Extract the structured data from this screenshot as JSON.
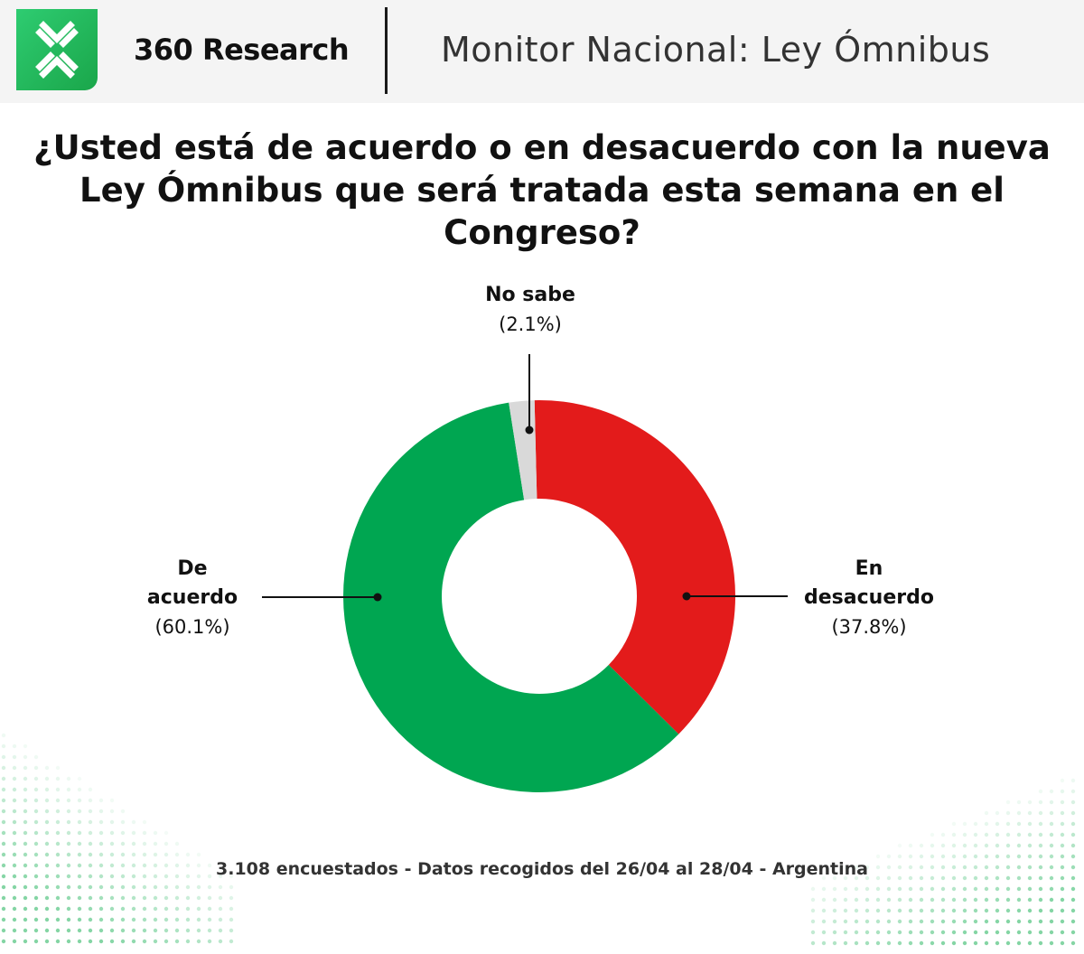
{
  "header": {
    "brand": "360 Research",
    "subtitle": "Monitor Nacional: Ley Ómnibus",
    "logo_icon": "x-arrows-logo-icon",
    "logo_color": "#22b95a"
  },
  "question": [
    "¿Usted está de acuerdo o en desacuerdo con la nueva",
    "Ley Ómnibus que será tratada esta semana en el",
    "Congreso?"
  ],
  "footer": "3.108 encuestados - Datos recogidos del 26/04 al 28/04 - Argentina",
  "chart_data": {
    "type": "pie",
    "donut": true,
    "slices": [
      {
        "label_lines": [
          "En",
          "desacuerdo"
        ],
        "value": 37.8,
        "value_text": "(37.8%)",
        "color": "#e31b1b"
      },
      {
        "label_lines": [
          "De",
          "acuerdo"
        ],
        "value": 60.1,
        "value_text": "(60.1%)",
        "color": "#00a651"
      },
      {
        "label_lines": [
          "No sabe"
        ],
        "value": 2.1,
        "value_text": "(2.1%)",
        "color": "#d9d9d9"
      }
    ]
  }
}
